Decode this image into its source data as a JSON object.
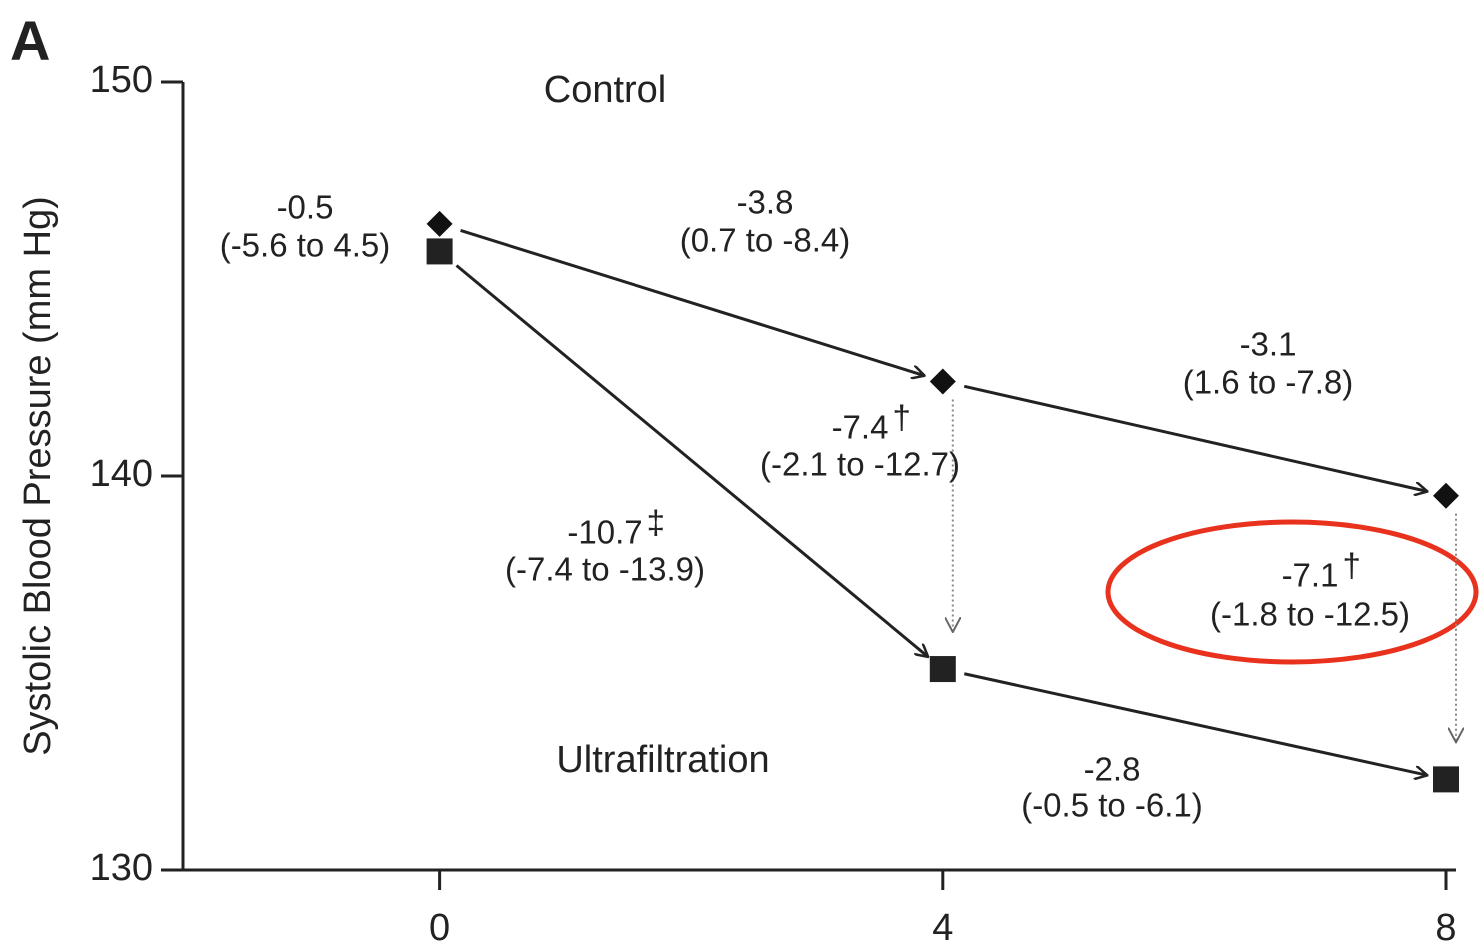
{
  "chart_data": {
    "type": "line",
    "panel": "A",
    "y_label": "Systolic Blood Pressure (mm Hg)",
    "x": [
      0,
      4,
      8
    ],
    "xlim": [
      -2,
      8
    ],
    "xticks": [
      0,
      4,
      8
    ],
    "ylim": [
      130,
      150
    ],
    "yticks": [
      130,
      140,
      150
    ],
    "series": [
      {
        "name": "Control",
        "color": "#111111",
        "marker": "diamond",
        "values": [
          146.4,
          142.4,
          139.5
        ]
      },
      {
        "name": "Ultrafiltration",
        "color": "#222222",
        "marker": "square",
        "values": [
          145.7,
          135.1,
          132.3
        ]
      }
    ],
    "annotations": [
      {
        "text": "-0.5",
        "ci": "(-5.6 to 4.5)"
      },
      {
        "text": "-3.8",
        "ci": "(0.7 to -8.4)"
      },
      {
        "text": "-3.1",
        "ci": "(1.6 to -7.8)"
      },
      {
        "text": "-7.4",
        "sig": "†",
        "ci": "(-2.1 to -12.7)"
      },
      {
        "text": "-10.7",
        "sig": "‡",
        "ci": "(-7.4 to -13.9)"
      },
      {
        "text": "-7.1",
        "sig": "†",
        "ci": "(-1.8 to -12.5)"
      },
      {
        "text": "-2.8",
        "ci": "(-0.5 to -6.1)"
      }
    ]
  }
}
